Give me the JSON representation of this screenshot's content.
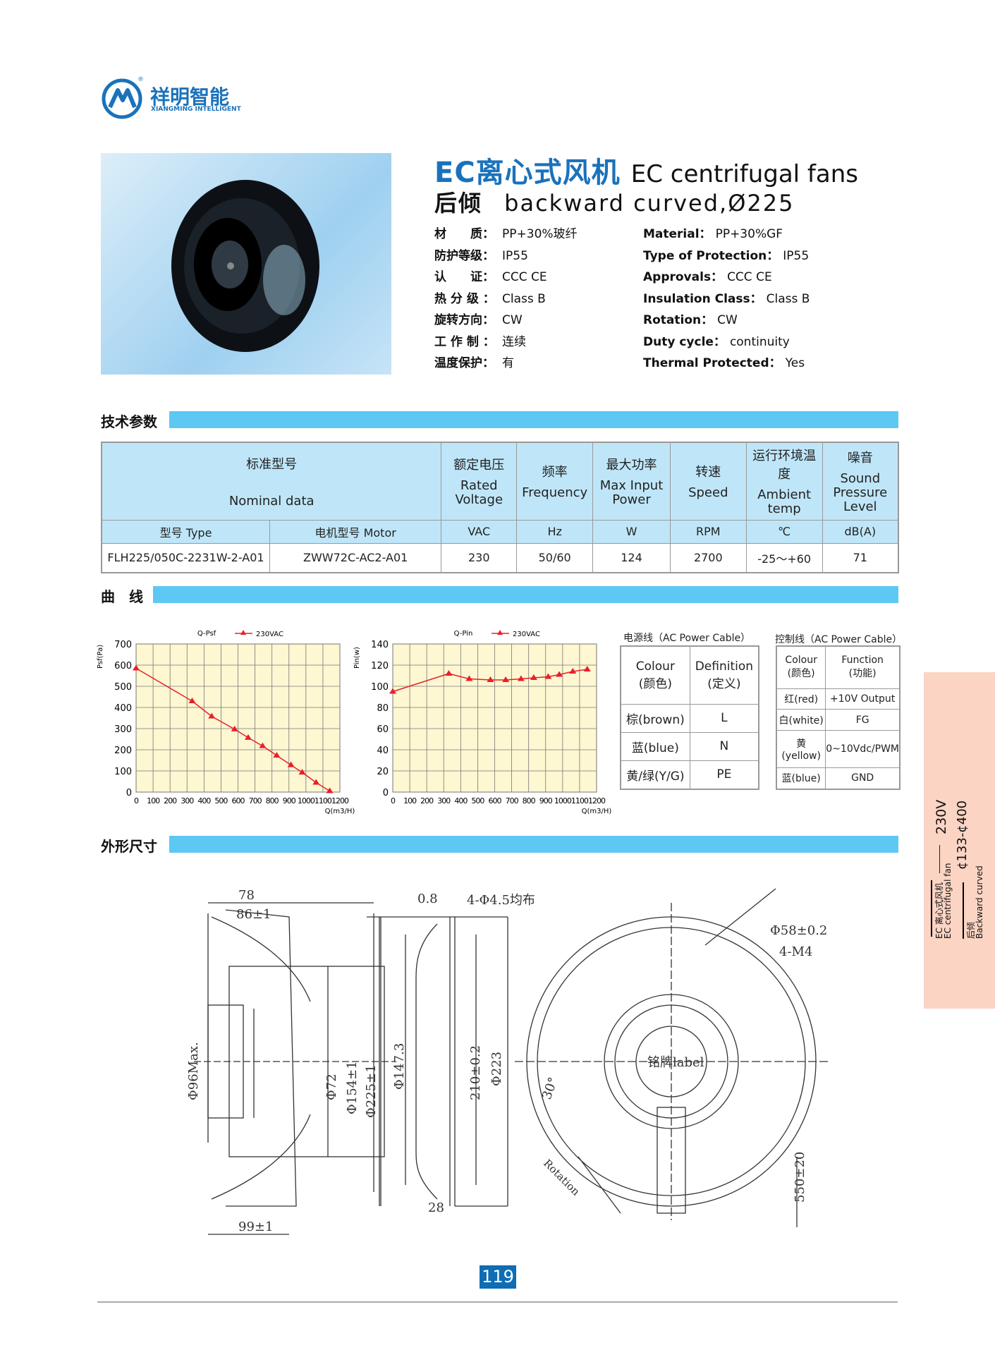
{
  "logo": {
    "cn": "祥明智能",
    "en": "XIANGMING INTELLIGENT",
    "registered": "®"
  },
  "header": {
    "title_cn": "EC离心式风机",
    "title_en": "EC centrifugal fans",
    "subtitle_cn": "后倾",
    "subtitle_en": "backward curved,Ø225"
  },
  "specs_cn": [
    {
      "label": "材　　质：",
      "value": "PP+30%玻纤"
    },
    {
      "label": "防护等级：",
      "value": "IP55"
    },
    {
      "label": "认　　证：",
      "value": "CCC  CE"
    },
    {
      "label": "热 分 级 ：",
      "value": "Class  B"
    },
    {
      "label": "旋转方向：",
      "value": "CW"
    },
    {
      "label": "工 作 制 ：",
      "value": "连续"
    },
    {
      "label": "温度保护：",
      "value": "有"
    }
  ],
  "specs_en": [
    {
      "label": "Material：",
      "value": "PP+30%GF"
    },
    {
      "label": "Type of Protection：",
      "value": "IP55"
    },
    {
      "label": "Approvals：",
      "value": "CCC  CE"
    },
    {
      "label": "Insulation Class：",
      "value": "Class  B"
    },
    {
      "label": "Rotation：",
      "value": "CW"
    },
    {
      "label": "Duty cycle：",
      "value": "continuity"
    },
    {
      "label": "Thermal  Protected：",
      "value": "Yes"
    }
  ],
  "sections": {
    "tech": "技术参数",
    "curve": "曲　线",
    "dims": "外形尺寸"
  },
  "main_table": {
    "nominal_cn": "标准型号",
    "nominal_en": "Nominal  data",
    "headers": [
      {
        "cn": "额定电压",
        "en": "Rated Voltage"
      },
      {
        "cn": "频率",
        "en": "Frequency"
      },
      {
        "cn": "最大功率",
        "en": "Max Input Power"
      },
      {
        "cn": "转速",
        "en": "Speed"
      },
      {
        "cn": "运行环境温度",
        "en": "Ambient temp"
      },
      {
        "cn": "噪音",
        "en": "Sound Pressure Level"
      }
    ],
    "subheaders": [
      "型号  Type",
      "电机型号  Motor",
      "VAC",
      "Hz",
      "W",
      "RPM",
      "℃",
      "dB(A)"
    ],
    "rows": [
      [
        "FLH225/050C-2231W-2-A01",
        "ZWW72C-AC2-A01",
        "230",
        "50/60",
        "124",
        "2700",
        "-25～+60",
        "71"
      ]
    ]
  },
  "chart_data": [
    {
      "type": "line",
      "title": "Q-Psf",
      "legend": "230VAC",
      "legend_position": "top",
      "xlabel": "Q(m3/H)",
      "ylabel": "Psf(Pa)",
      "xlim": [
        0,
        1200
      ],
      "ylim": [
        0,
        700
      ],
      "xticks": [
        0,
        100,
        200,
        300,
        400,
        500,
        600,
        700,
        800,
        900,
        1000,
        1100,
        1200
      ],
      "yticks": [
        0,
        100,
        200,
        300,
        400,
        500,
        600,
        700
      ],
      "grid": true,
      "color": "#e8202a",
      "background": "#fdf7d2",
      "series": [
        {
          "name": "230VAC",
          "x": [
            0,
            330,
            445,
            580,
            660,
            745,
            828,
            912,
            978,
            1060,
            1140
          ],
          "y": [
            585,
            430,
            358,
            297,
            257,
            218,
            173,
            128,
            93,
            45,
            5
          ]
        }
      ]
    },
    {
      "type": "line",
      "title": "Q-Pin",
      "legend": "230VAC",
      "legend_position": "top",
      "xlabel": "Q(m3/H)",
      "ylabel": "Pin(w)",
      "xlim": [
        0,
        1200
      ],
      "ylim": [
        0,
        140
      ],
      "xticks": [
        0,
        100,
        200,
        300,
        400,
        500,
        600,
        700,
        800,
        900,
        1000,
        1100,
        1200
      ],
      "yticks": [
        0,
        20,
        40,
        60,
        80,
        100,
        120,
        140
      ],
      "grid": true,
      "color": "#e8202a",
      "background": "#fdf7d2",
      "series": [
        {
          "name": "230VAC",
          "x": [
            0,
            330,
            450,
            575,
            665,
            755,
            830,
            915,
            980,
            1060,
            1145
          ],
          "y": [
            95,
            112,
            107,
            106,
            106,
            107,
            108,
            109,
            111,
            114,
            116
          ]
        }
      ]
    }
  ],
  "power_cable": {
    "title": "电源线（AC Power Cable）",
    "headers": [
      [
        "Colour",
        "(颜色)"
      ],
      [
        "Definition",
        "(定义)"
      ]
    ],
    "rows": [
      [
        "棕(brown)",
        "L"
      ],
      [
        "蓝(blue)",
        "N"
      ],
      [
        "黄/绿(Y/G)",
        "PE"
      ]
    ]
  },
  "control_cable": {
    "title": "控制线（AC Power Cable）",
    "headers": [
      [
        "Colour",
        "(颜色)"
      ],
      [
        "Function",
        "(功能)"
      ]
    ],
    "rows": [
      [
        "红(red)",
        "+10V Output"
      ],
      [
        "白(white)",
        "FG"
      ],
      [
        "黄(yellow)",
        "0~10Vdc/PWM"
      ],
      [
        "蓝(blue)",
        "GND"
      ]
    ]
  },
  "dims": {
    "d78": "78",
    "d86": "86±1",
    "d99": "99±1",
    "d96": "Φ96Max.",
    "d72": "Φ72",
    "d154": "Φ154±1",
    "d225": "Φ225±1",
    "d08": "0.8",
    "holes": "4-Φ4.5均布",
    "d147": "Φ147.3",
    "d210": "210±0.2",
    "d223": "Φ223",
    "d28": "28",
    "d58": "Φ58±0.2",
    "m4": "4-M4",
    "label": "铭牌label",
    "angle": "30°",
    "rotation": "Rotation",
    "cable": "550±20"
  },
  "page_number": "119",
  "side_tab": {
    "v": "230V",
    "range": "¢133-¢400",
    "cat1_cn": "EC 离心式风机",
    "cat1_en": "EC centrifugal fan",
    "cat2_cn": "后倾",
    "cat2_en": "Backward curved"
  }
}
